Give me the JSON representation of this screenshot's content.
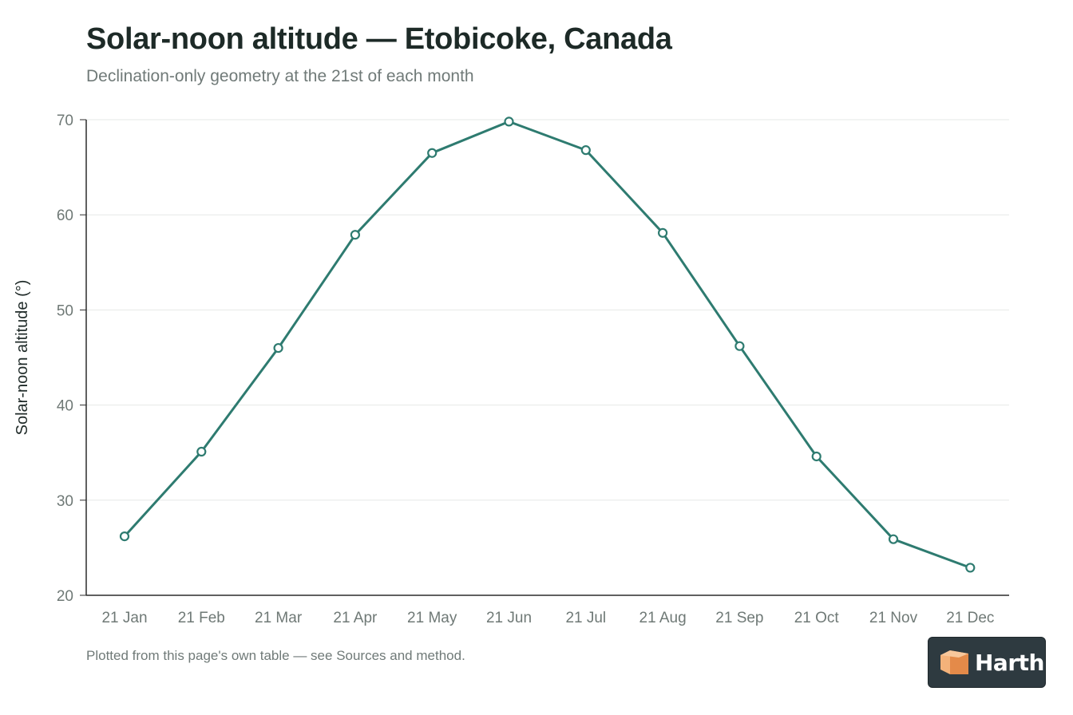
{
  "page": {
    "title": "Solar-noon altitude — Etobicoke, Canada",
    "subtitle": "Declination-only geometry at the 21st of each month",
    "footnote": "Plotted from this page's own table — see Sources and method.",
    "logo": {
      "text": "Harth",
      "icon": "box-icon",
      "colors": {
        "background": "#2e3a40",
        "mark_light": "#f4b27a",
        "mark_dark": "#e48a49"
      }
    }
  },
  "chart_data": {
    "type": "line",
    "title": "Solar-noon altitude — Etobicoke, Canada",
    "subtitle": "Declination-only geometry at the 21st of each month",
    "xlabel": "",
    "ylabel": "Solar-noon altitude (°)",
    "categories": [
      "21 Jan",
      "21 Feb",
      "21 Mar",
      "21 Apr",
      "21 May",
      "21 Jun",
      "21 Jul",
      "21 Aug",
      "21 Sep",
      "21 Oct",
      "21 Nov",
      "21 Dec"
    ],
    "series": [
      {
        "values": [
          26.2,
          35.1,
          46.0,
          57.9,
          66.5,
          69.8,
          66.8,
          58.1,
          46.2,
          34.6,
          25.9,
          22.9
        ]
      }
    ],
    "ylim": [
      20,
      70
    ],
    "yticks": [
      20,
      30,
      40,
      50,
      60,
      70
    ],
    "grid": true,
    "markers": "open-circle",
    "colors": {
      "line": "#2e7b70",
      "marker_fill": "#ffffff",
      "grid": "#e6e8e7",
      "axis": "#2b2b2b",
      "tick_text": "#6f7976",
      "ylabel_text": "#1f2a28"
    }
  }
}
